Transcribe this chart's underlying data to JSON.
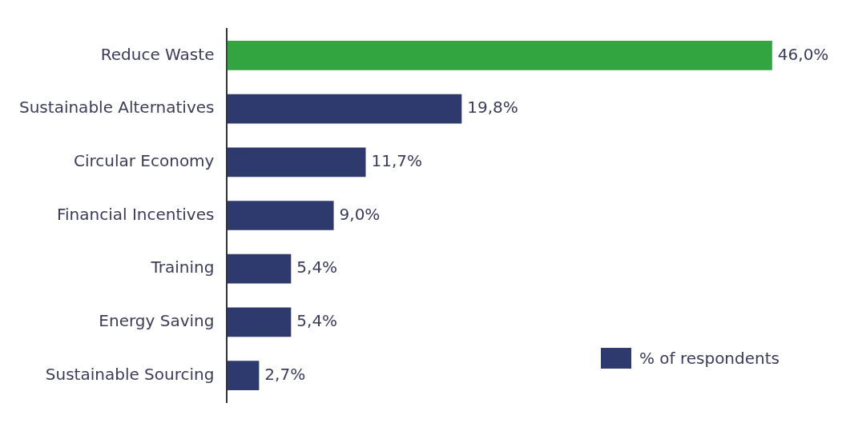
{
  "chart_data": {
    "type": "bar",
    "orientation": "horizontal",
    "categories": [
      "Reduce Waste",
      "Sustainable Alternatives",
      "Circular Economy",
      "Financial Incentives",
      "Training",
      "Energy Saving",
      "Sustainable Sourcing"
    ],
    "series": [
      {
        "name": "% of respondents",
        "color": "#2e3a6e",
        "colors": [
          "#33a540",
          "#2e3a6e",
          "#2e3a6e",
          "#2e3a6e",
          "#2e3a6e",
          "#2e3a6e",
          "#2e3a6e"
        ],
        "values": [
          46.0,
          19.8,
          11.7,
          9.0,
          5.4,
          5.4,
          2.7
        ],
        "value_labels": [
          "46,0%",
          "19,8%",
          "11,7%",
          "9,0%",
          "5,4%",
          "5,4%",
          "2,7%"
        ]
      }
    ],
    "legend": "bottom right"
  }
}
